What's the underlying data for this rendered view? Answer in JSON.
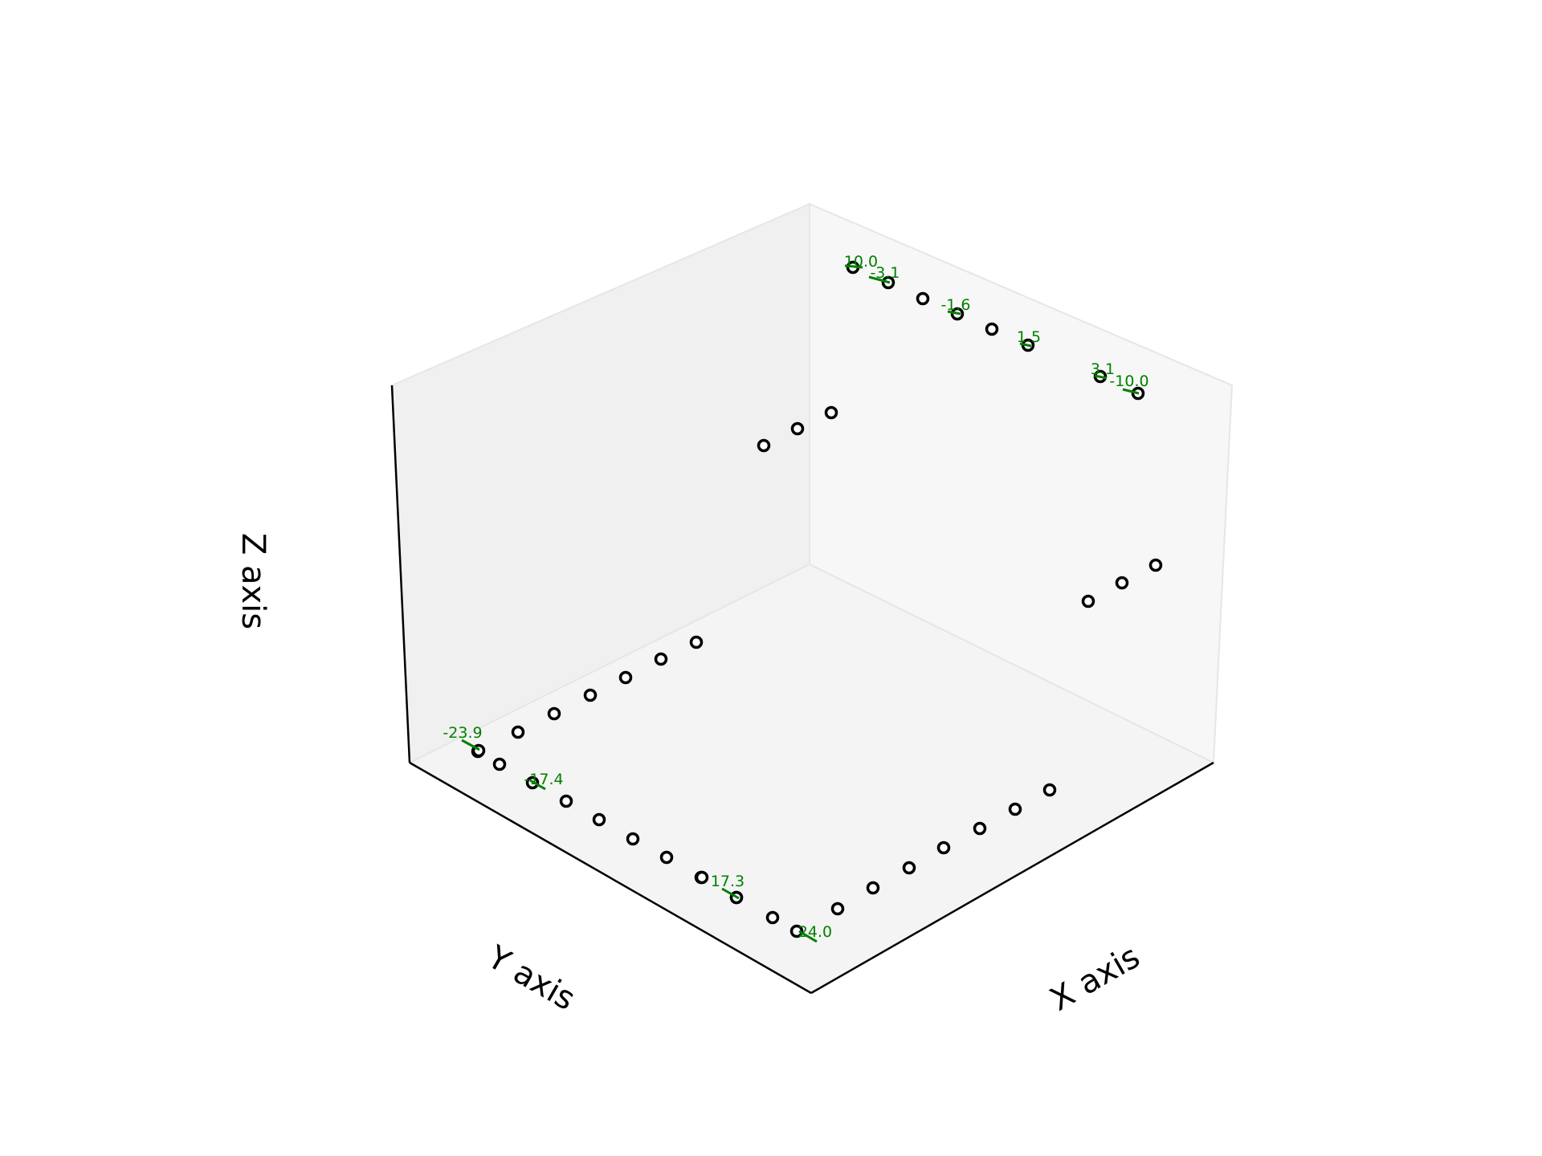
{
  "chart_data": {
    "type": "scatter",
    "projection": "3d",
    "xlabel": "X axis",
    "ylabel": "Y axis",
    "zlabel": "Z axis",
    "ticks_visible": false,
    "grid": false,
    "legend": "none",
    "marker": "open-circle",
    "colors": {
      "marker_edge": "#000000",
      "marker_face": "#ffffff",
      "annotation": "#008000",
      "pane_left": "#f0f0f0",
      "pane_right": "#f7f7f7",
      "pane_floor": "#f4f4f4",
      "pane_edge": "#e6e6e6",
      "axis_line": "#000000"
    },
    "points": [
      {
        "x": 0,
        "y": -23.9,
        "z": 0
      },
      {
        "x": 0,
        "y": -21.2,
        "z": 0
      },
      {
        "x": 0,
        "y": -17.4,
        "z": 0
      },
      {
        "x": 0,
        "y": -13.0,
        "z": 0
      },
      {
        "x": 0,
        "y": -8.7,
        "z": 0
      },
      {
        "x": 0,
        "y": -3.8,
        "z": 0
      },
      {
        "x": 0,
        "y": 0.4,
        "z": 0
      },
      {
        "x": 0,
        "y": 5.3,
        "z": 0
      },
      {
        "x": 0,
        "y": 9.6,
        "z": 0
      },
      {
        "x": 0,
        "y": 14.0,
        "z": 0
      },
      {
        "x": 0,
        "y": 17.3,
        "z": 0
      },
      {
        "x": 0,
        "y": 20.6,
        "z": 0
      },
      {
        "x": 0,
        "y": 24.0,
        "z": 0
      },
      {
        "x": -10.0,
        "y": 24,
        "z": 0
      },
      {
        "x": -6.7,
        "y": 24,
        "z": 0
      },
      {
        "x": -3.4,
        "y": 24,
        "z": 0
      },
      {
        "x": -0.1,
        "y": 24,
        "z": 0
      },
      {
        "x": 3.1,
        "y": 24,
        "z": 0
      },
      {
        "x": 6.7,
        "y": 24,
        "z": 0
      },
      {
        "x": 10.0,
        "y": 24,
        "z": 0
      },
      {
        "x": 0,
        "y": -23.6,
        "z": 0.48
      },
      {
        "x": 0,
        "y": -20.3,
        "z": 0.48
      },
      {
        "x": 0,
        "y": -16.8,
        "z": 0.48
      },
      {
        "x": 0,
        "y": -13.4,
        "z": 0.48
      },
      {
        "x": 0,
        "y": -10.3,
        "z": 0.48
      },
      {
        "x": 0,
        "y": -7.0,
        "z": 0.48
      },
      {
        "x": 0,
        "y": -3.8,
        "z": 0.48
      },
      {
        "x": 0,
        "y": -10.0,
        "z": 1.4
      },
      {
        "x": 0,
        "y": -6.8,
        "z": 1.4
      },
      {
        "x": 0,
        "y": -3.8,
        "z": 1.4
      },
      {
        "x": 10.0,
        "y": 0,
        "z": 1.4
      },
      {
        "x": 7.6,
        "y": 0,
        "z": 1.4
      },
      {
        "x": 4.7,
        "y": 0,
        "z": 1.4
      },
      {
        "x": 10.0,
        "y": 0,
        "z": 0.0
      },
      {
        "x": -3.1,
        "y": 0,
        "z": 0.0
      },
      {
        "x": -9.0,
        "y": 0,
        "z": 0.0
      },
      {
        "x": 3.8,
        "y": 0,
        "z": 0.0
      },
      {
        "x": 1.5,
        "y": 0,
        "z": 0.0
      },
      {
        "x": -1.6,
        "y": 0,
        "z": 0.0
      },
      {
        "x": 3.1,
        "y": 0,
        "z": 0.0
      },
      {
        "x": -10.0,
        "y": 0,
        "z": 0.0
      }
    ],
    "annotations": [
      {
        "text": "-23.9"
      },
      {
        "text": "-17.4"
      },
      {
        "text": "17.3"
      },
      {
        "text": "24.0"
      },
      {
        "text": "10.0"
      },
      {
        "text": "-3.1"
      },
      {
        "text": "-1.6"
      },
      {
        "text": "1.5"
      },
      {
        "text": "3.1"
      },
      {
        "text": "-10.0"
      }
    ]
  }
}
